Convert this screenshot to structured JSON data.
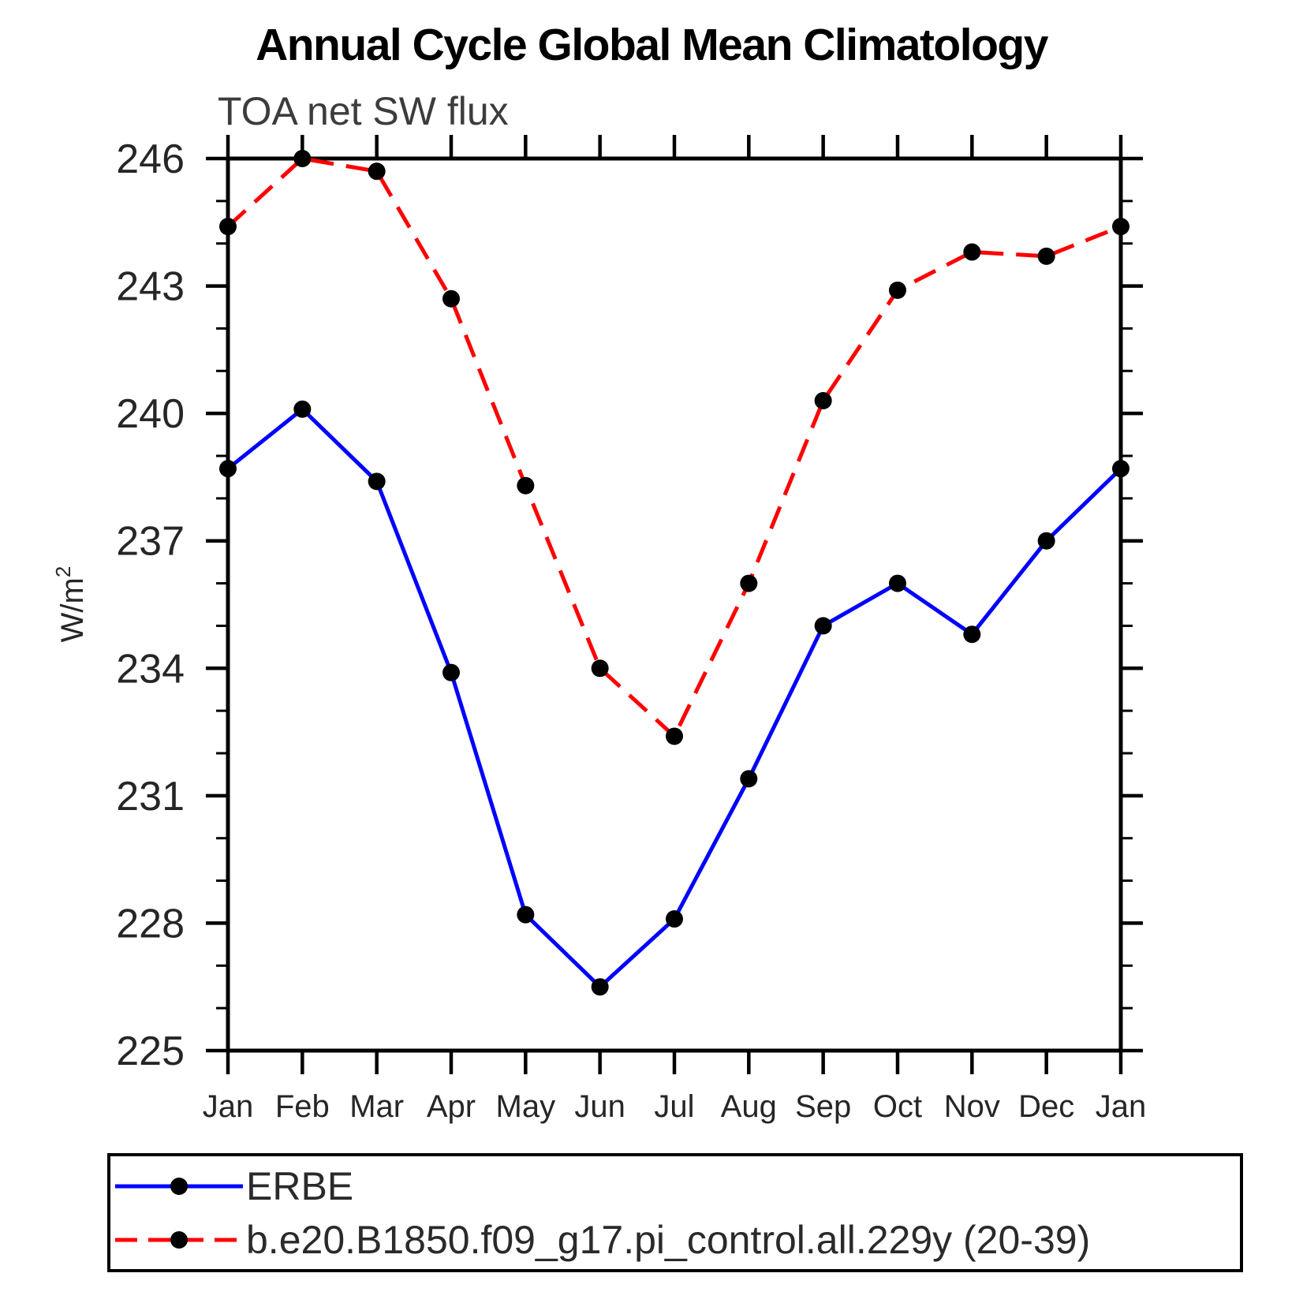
{
  "header": {
    "title": "Annual Cycle Global Mean Climatology"
  },
  "chart_data": {
    "type": "line",
    "title": "Annual Cycle Global Mean Climatology",
    "subtitle": "TOA net SW flux",
    "ylabel": "W/m²",
    "ylabel_base": "W/m",
    "ylabel_exp": "2",
    "categories": [
      "Jan",
      "Feb",
      "Mar",
      "Apr",
      "May",
      "Jun",
      "Jul",
      "Aug",
      "Sep",
      "Oct",
      "Nov",
      "Dec",
      "Jan"
    ],
    "yticks": [
      225,
      228,
      231,
      234,
      237,
      240,
      243,
      246
    ],
    "ytick_labels": [
      "225",
      "228",
      "231",
      "234",
      "237",
      "240",
      "243",
      "246"
    ],
    "ylim": [
      225,
      246
    ],
    "minor_tick_step": 1,
    "grid": false,
    "legend_position": "bottom",
    "marker": {
      "shape": "circle",
      "color": "#000000"
    },
    "series": [
      {
        "name": "ERBE",
        "color": "#0000ff",
        "line_style": "solid",
        "values": [
          238.7,
          240.1,
          238.4,
          233.9,
          228.2,
          226.5,
          228.1,
          231.4,
          235.0,
          236.0,
          234.8,
          237.0,
          238.7
        ]
      },
      {
        "name": "b.e20.B1850.f09_g17.pi_control.all.229y (20-39)",
        "color": "#ff0000",
        "line_style": "dashed",
        "values": [
          244.4,
          246.0,
          245.7,
          242.7,
          238.3,
          234.0,
          232.4,
          236.0,
          240.3,
          242.9,
          243.8,
          243.7,
          244.4
        ]
      }
    ]
  }
}
